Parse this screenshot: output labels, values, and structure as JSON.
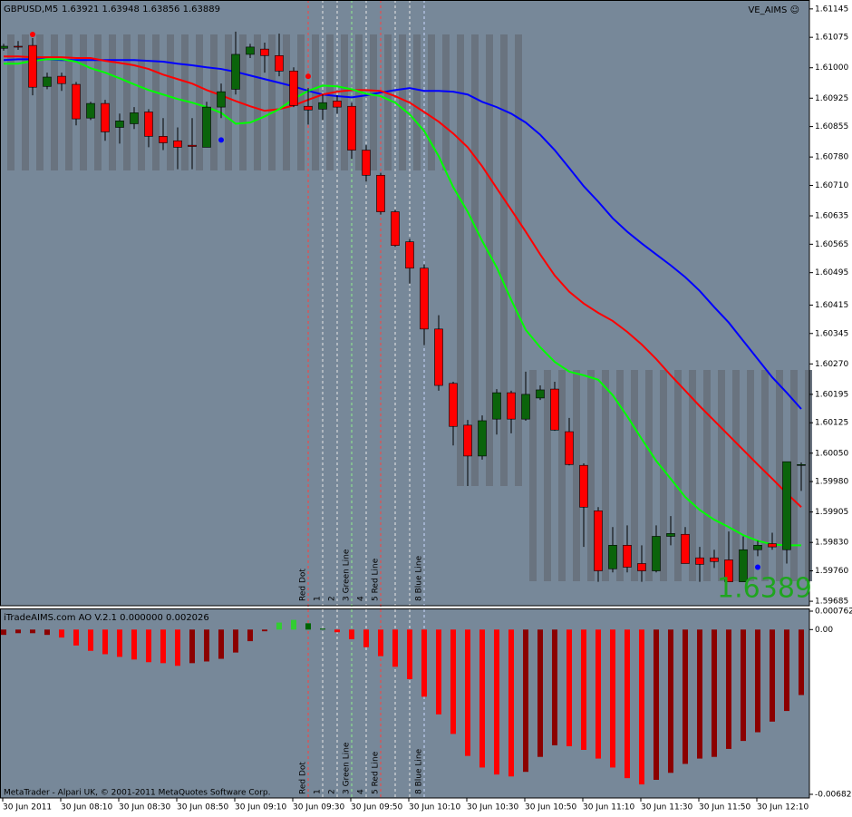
{
  "chart_data": [
    {
      "type": "candlestick",
      "title": "GBPUSD,M5",
      "subtitle": "1.63921 1.63948 1.63856 1.63889",
      "indicator_label": "VE_AIMS ☺",
      "last_price_label": "1.6389",
      "background": "#778899",
      "stripe_color": "#69737f",
      "up_color": "#0b640b",
      "down_color": "#ff0000",
      "wick_color": "#000000",
      "open": [
        1.61048,
        1.61053,
        1.61055,
        1.60954,
        1.60979,
        1.60959,
        1.60876,
        1.60912,
        1.60853,
        1.60862,
        1.60891,
        1.60831,
        1.6082,
        1.60809,
        1.60804,
        1.60903,
        1.60947,
        1.61033,
        1.61046,
        1.6103,
        1.60992,
        1.60905,
        1.60898,
        1.60918,
        1.60905,
        1.60797,
        1.60735,
        1.60645,
        1.60571,
        1.60506,
        1.60356,
        1.60222,
        1.60119,
        1.60043,
        1.60134,
        1.60199,
        1.60134,
        1.60186,
        1.60208,
        1.60103,
        1.6002,
        1.59908,
        1.59765,
        1.59823,
        1.59778,
        1.5976,
        1.59845,
        1.5985,
        1.59792,
        1.59792,
        1.59787,
        1.59733,
        1.59812,
        1.59827,
        1.59812,
        1.60022
      ],
      "high": [
        1.61059,
        1.61066,
        1.61073,
        1.60988,
        1.60988,
        1.60965,
        1.60916,
        1.60921,
        1.60887,
        1.60903,
        1.60898,
        1.60876,
        1.60853,
        1.60876,
        1.60916,
        1.60961,
        1.61089,
        1.61059,
        1.61062,
        1.61084,
        1.61001,
        1.6095,
        1.60934,
        1.60932,
        1.60914,
        1.60809,
        1.60741,
        1.6065,
        1.60578,
        1.60515,
        1.6039,
        1.60226,
        1.60132,
        1.60143,
        1.60208,
        1.60204,
        1.60251,
        1.60217,
        1.60226,
        1.60137,
        1.60025,
        1.59917,
        1.59868,
        1.59872,
        1.59823,
        1.59872,
        1.59895,
        1.59868,
        1.59819,
        1.59812,
        1.59857,
        1.59845,
        1.59834,
        1.59854,
        1.60029,
        1.60027
      ],
      "low": [
        1.61042,
        1.61044,
        1.60932,
        1.60947,
        1.60943,
        1.60858,
        1.60871,
        1.6082,
        1.60813,
        1.60849,
        1.60804,
        1.60797,
        1.6075,
        1.6075,
        1.60804,
        1.60876,
        1.60934,
        1.61024,
        1.60988,
        1.60979,
        1.60903,
        1.6086,
        1.60871,
        1.60887,
        1.60775,
        1.60719,
        1.60638,
        1.60558,
        1.60468,
        1.60316,
        1.60204,
        1.60069,
        1.59969,
        1.60034,
        1.60096,
        1.60099,
        1.6013,
        1.60181,
        1.60105,
        1.6002,
        1.59819,
        1.59733,
        1.59756,
        1.59756,
        1.59733,
        1.59756,
        1.59823,
        1.59778,
        1.59733,
        1.59767,
        1.59733,
        1.59733,
        1.59796,
        1.59812,
        1.59778,
        1.59957
      ],
      "close": [
        1.61053,
        1.61051,
        1.60952,
        1.60977,
        1.60961,
        1.60874,
        1.60912,
        1.60842,
        1.60869,
        1.60889,
        1.60831,
        1.60815,
        1.60804,
        1.60806,
        1.60903,
        1.60941,
        1.61033,
        1.61051,
        1.6103,
        1.60992,
        1.60907,
        1.60896,
        1.60914,
        1.60903,
        1.60797,
        1.60735,
        1.60645,
        1.60562,
        1.60506,
        1.60356,
        1.60217,
        1.60116,
        1.60043,
        1.6013,
        1.60199,
        1.60134,
        1.60195,
        1.60206,
        1.60107,
        1.60022,
        1.59917,
        1.5976,
        1.59823,
        1.59769,
        1.5976,
        1.59845,
        1.59852,
        1.59778,
        1.59776,
        1.59783,
        1.59733,
        1.59812,
        1.59823,
        1.59819,
        1.60029,
        1.60022
      ],
      "series": [
        {
          "color": "#0000ff",
          "values": [
            1.61019,
            1.61021,
            1.61021,
            1.61021,
            1.61019,
            1.61019,
            1.61019,
            1.61019,
            1.61019,
            1.61019,
            1.61017,
            1.61015,
            1.6101,
            1.61006,
            1.61001,
            1.60997,
            1.6099,
            1.60981,
            1.60972,
            1.60963,
            1.60954,
            1.60943,
            1.60934,
            1.6093,
            1.60927,
            1.60932,
            1.60939,
            1.60945,
            1.6095,
            1.60943,
            1.60943,
            1.60941,
            1.60934,
            1.60916,
            1.60903,
            1.60887,
            1.60865,
            1.60835,
            1.60797,
            1.60753,
            1.60708,
            1.6067,
            1.60629,
            1.60596,
            1.60567,
            1.6054,
            1.60513,
            1.60484,
            1.6045,
            1.6041,
            1.60372,
            1.60327,
            1.60282,
            1.60237,
            1.60199,
            1.60159
          ]
        },
        {
          "color": "#ff0000",
          "values": [
            1.61028,
            1.61028,
            1.61026,
            1.61026,
            1.61026,
            1.61024,
            1.61024,
            1.61017,
            1.61012,
            1.61006,
            1.60997,
            1.60983,
            1.60972,
            1.60961,
            1.60945,
            1.60932,
            1.60918,
            1.60905,
            1.60894,
            1.60898,
            1.60907,
            1.60921,
            1.60934,
            1.60941,
            1.60945,
            1.60945,
            1.60943,
            1.6093,
            1.60914,
            1.60891,
            1.60867,
            1.60838,
            1.60804,
            1.60757,
            1.60703,
            1.6065,
            1.60596,
            1.6054,
            1.60488,
            1.60448,
            1.60419,
            1.60396,
            1.60376,
            1.60349,
            1.60318,
            1.60282,
            1.60242,
            1.60204,
            1.60166,
            1.6013,
            1.60094,
            1.60058,
            1.60022,
            1.59987,
            1.59951,
            1.59917
          ]
        },
        {
          "color": "#00ff00",
          "values": [
            1.6101,
            1.6101,
            1.61017,
            1.61021,
            1.61021,
            1.61015,
            1.60999,
            1.60988,
            1.60974,
            1.60959,
            1.60945,
            1.60934,
            1.60923,
            1.60914,
            1.60903,
            1.60889,
            1.60862,
            1.60865,
            1.6088,
            1.60898,
            1.60923,
            1.60943,
            1.60956,
            1.60954,
            1.60947,
            1.60936,
            1.6093,
            1.60914,
            1.60885,
            1.60844,
            1.60782,
            1.60706,
            1.60645,
            1.60573,
            1.60508,
            1.60428,
            1.60354,
            1.60311,
            1.60275,
            1.60251,
            1.60242,
            1.60231,
            1.60193,
            1.60141,
            1.60085,
            1.60031,
            1.59987,
            1.59942,
            1.5991,
            1.59886,
            1.59868,
            1.59848,
            1.59834,
            1.59825,
            1.59823,
            1.59823
          ]
        }
      ],
      "dots": [
        {
          "color": "#ff0000",
          "values": [
            null,
            null,
            1.61082,
            null,
            null,
            null,
            null,
            null,
            null,
            null,
            null,
            null,
            null,
            null,
            null,
            null,
            null,
            null,
            null,
            null,
            null,
            1.60979,
            null,
            null,
            null,
            null,
            null,
            null,
            null,
            null,
            null,
            null,
            null,
            null,
            null,
            null,
            null,
            null,
            null,
            null,
            null,
            null,
            null,
            null,
            null,
            null,
            null,
            null,
            null,
            null,
            null,
            null,
            null,
            null,
            null,
            null
          ]
        },
        {
          "color": "#0000ff",
          "values": [
            null,
            null,
            null,
            null,
            null,
            null,
            null,
            null,
            null,
            null,
            null,
            null,
            null,
            null,
            null,
            1.60822,
            null,
            null,
            null,
            null,
            null,
            null,
            null,
            null,
            null,
            null,
            null,
            null,
            null,
            null,
            null,
            null,
            null,
            null,
            null,
            null,
            null,
            null,
            null,
            null,
            null,
            null,
            null,
            null,
            null,
            null,
            null,
            null,
            null,
            null,
            null,
            null,
            1.59769,
            null,
            null,
            null
          ]
        }
      ],
      "vline_labels": [
        "Red Dot",
        "1",
        "2",
        "3 Green Line",
        "4",
        "5 Red Line",
        "8 Blue Line"
      ],
      "ylim": [
        1.59674,
        1.61167
      ],
      "yticks": [
        1.61145,
        1.61075,
        {
          "value": 1.61,
          "label": "1.61000"
        },
        1.60925,
        1.60855,
        {
          "value": 1.6078,
          "label": "1.60780"
        },
        {
          "value": 1.6071,
          "label": "1.60710"
        },
        1.60635,
        1.60565,
        1.60495,
        1.60415,
        1.60345,
        {
          "value": 1.6027,
          "label": "1.60270"
        },
        1.60195,
        1.60125,
        {
          "value": 1.6005,
          "label": "1.60050"
        },
        {
          "value": 1.5998,
          "label": "1.59980"
        },
        1.59905,
        {
          "value": 1.5983,
          "label": "1.59830"
        },
        {
          "value": 1.5976,
          "label": "1.59760"
        },
        1.59685
      ]
    },
    {
      "type": "bar",
      "title": "iTradeAIMS.com AO V.2.1 0.000000 0.002026",
      "footer": "MetaTrader - Alpari UK, © 2001-2011 MetaQuotes Software Corp.",
      "categories": [
        "30 Jun 2011",
        null,
        null,
        null,
        "30 Jun 08:10",
        null,
        null,
        null,
        "30 Jun 08:30",
        null,
        null,
        null,
        "30 Jun 08:50",
        null,
        null,
        null,
        "30 Jun 09:10",
        null,
        null,
        null,
        "30 Jun 09:30",
        null,
        null,
        null,
        "30 Jun 09:50",
        null,
        null,
        null,
        "30 Jun 10:10",
        null,
        null,
        null,
        "30 Jun 10:30",
        null,
        null,
        null,
        "30 Jun 10:50",
        null,
        null,
        null,
        "30 Jun 11:10",
        null,
        null,
        null,
        "30 Jun 11:30",
        null,
        null,
        null,
        "30 Jun 11:50",
        null,
        null,
        null,
        "30 Jun 12:10",
        null,
        null,
        null
      ],
      "values": [
        -0.00022,
        -0.00015,
        -0.00015,
        -0.00022,
        -0.00033,
        -0.00066,
        -0.00088,
        -0.00102,
        -0.00113,
        -0.00124,
        -0.00135,
        -0.00139,
        -0.0015,
        -0.00139,
        -0.00132,
        -0.00121,
        -0.00095,
        -0.00048,
        -7e-05,
        0.00029,
        0.0004,
        0.00026,
        4e-05,
        -0.00011,
        -0.0004,
        -0.00073,
        -0.0011,
        -0.00154,
        -0.00205,
        -0.00278,
        -0.00351,
        -0.00432,
        -0.00523,
        -0.00571,
        -0.006,
        -0.00608,
        -0.00589,
        -0.00527,
        -0.00479,
        -0.00483,
        -0.00498,
        -0.00534,
        -0.00571,
        -0.00615,
        -0.00641,
        -0.00622,
        -0.00593,
        -0.00556,
        -0.00534,
        -0.00527,
        -0.00494,
        -0.00461,
        -0.00425,
        -0.00381,
        -0.00337,
        -0.00271
      ],
      "colors": [
        "#8b0000",
        "#8b0000",
        "#8b0000",
        "#8b0000",
        "#ff0000",
        "#ff0000",
        "#ff0000",
        "#ff0000",
        "#ff0000",
        "#ff0000",
        "#ff0000",
        "#ff0000",
        "#ff0000",
        "#8b0000",
        "#8b0000",
        "#8b0000",
        "#8b0000",
        "#8b0000",
        "#8b0000",
        "#32cd32",
        "#32cd32",
        "#006400",
        "#006400",
        "#ff0000",
        "#ff0000",
        "#ff0000",
        "#ff0000",
        "#ff0000",
        "#ff0000",
        "#ff0000",
        "#ff0000",
        "#ff0000",
        "#ff0000",
        "#ff0000",
        "#ff0000",
        "#ff0000",
        "#8b0000",
        "#8b0000",
        "#8b0000",
        "#ff0000",
        "#ff0000",
        "#ff0000",
        "#ff0000",
        "#ff0000",
        "#ff0000",
        "#8b0000",
        "#8b0000",
        "#8b0000",
        "#8b0000",
        "#8b0000",
        "#8b0000",
        "#8b0000",
        "#8b0000",
        "#8b0000",
        "#8b0000",
        "#8b0000"
      ],
      "background": "#778899",
      "ylim": [
        -0.00682,
        0.000762
      ],
      "yticks": [
        0.000762,
        {
          "value": 0,
          "label": "0.00"
        },
        -0.00682
      ]
    }
  ]
}
